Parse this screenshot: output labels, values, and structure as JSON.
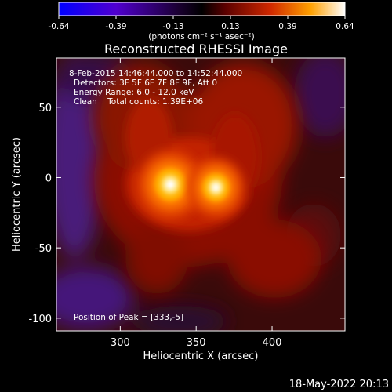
{
  "chart_data": {
    "type": "heatmap",
    "title": "Reconstructed RHESSI Image",
    "xlabel": "Heliocentric X (arcsec)",
    "ylabel": "Heliocentric Y (arcsec)",
    "xlim": [
      258,
      448
    ],
    "ylim": [
      -109,
      85
    ],
    "x_ticks": [
      300,
      350,
      400
    ],
    "y_ticks": [
      50,
      0,
      -50,
      -100
    ],
    "colorbar": {
      "label": "(photons cm⁻² s⁻¹ asec⁻²)",
      "range": [
        -0.64,
        0.64
      ],
      "ticks": [
        "-0.64",
        "-0.39",
        "-0.13",
        "0.13",
        "0.39",
        "0.64"
      ],
      "colormap": [
        "#0000ff",
        "#5a00c8",
        "#2a0060",
        "#5a0000",
        "#c82800",
        "#ff8c00",
        "#ffffff"
      ]
    },
    "annotations": [
      "8-Feb-2015 14:46:44.000 to 14:52:44.000",
      "Detectors: 3F 5F 6F 7F 8F 9F, Att 0",
      "Energy Range: 6.0 - 12.0 keV",
      "Clean    Total counts: 1.39E+06"
    ],
    "peak_text": "Position of Peak = [333,-5]",
    "sources": [
      {
        "x": 333,
        "y": -5,
        "peak": 0.64
      },
      {
        "x": 363,
        "y": -7,
        "peak": 0.55
      }
    ]
  },
  "footer": {
    "timestamp": "18-May-2022 20:13"
  }
}
